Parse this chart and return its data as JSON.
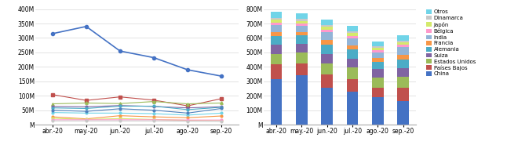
{
  "months": [
    "abr.-20",
    "may.-20",
    "jun.-20",
    "jul.-20",
    "ago.-20",
    "sep.-20"
  ],
  "line_china": [
    315000000.0,
    340000000.0,
    255000000.0,
    232000000.0,
    190000000.0,
    168000000.0
  ],
  "line_series_order": [
    "Países Bajos",
    "Estados Unidos",
    "Suiza",
    "Alemania",
    "Otros",
    "India",
    "Francia",
    "Japón",
    "Bélgica",
    "Dinamarca"
  ],
  "line_series": {
    "Países Bajos": {
      "color": "#c0504d",
      "values": [
        104000000.0,
        84000000.0,
        96000000.0,
        85000000.0,
        65000000.0,
        90000000.0
      ],
      "marker": "s",
      "ms": 3
    },
    "Estados Unidos": {
      "color": "#9bbb59",
      "values": [
        72000000.0,
        75000000.0,
        73000000.0,
        80000000.0,
        72000000.0,
        75000000.0
      ],
      "marker": "^",
      "ms": 2.5
    },
    "Suiza": {
      "color": "#8064a2",
      "values": [
        63000000.0,
        62000000.0,
        66000000.0,
        63000000.0,
        58000000.0,
        62000000.0
      ],
      "marker": "o",
      "ms": 2
    },
    "Alemania": {
      "color": "#4bacc6",
      "values": [
        58000000.0,
        56000000.0,
        64000000.0,
        64000000.0,
        52000000.0,
        60000000.0
      ],
      "marker": "o",
      "ms": 2
    },
    "Otros": {
      "color": "#70d4e8",
      "values": [
        42000000.0,
        40000000.0,
        40000000.0,
        38000000.0,
        33000000.0,
        40000000.0
      ],
      "marker": "o",
      "ms": 2
    },
    "India": {
      "color": "#4f81bd",
      "values": [
        50000000.0,
        46000000.0,
        55000000.0,
        50000000.0,
        40000000.0,
        56000000.0
      ],
      "marker": "o",
      "ms": 2
    },
    "Francia": {
      "color": "#f79646",
      "values": [
        27000000.0,
        20000000.0,
        31000000.0,
        27000000.0,
        24000000.0,
        30000000.0
      ],
      "marker": "o",
      "ms": 2
    },
    "Japón": {
      "color": "#d4ea6b",
      "values": [
        22000000.0,
        18000000.0,
        21000000.0,
        18000000.0,
        15000000.0,
        15000000.0
      ],
      "marker": "o",
      "ms": 2
    },
    "Bélgica": {
      "color": "#ff99cc",
      "values": [
        17000000.0,
        17000000.0,
        17000000.0,
        17000000.0,
        16000000.0,
        16000000.0
      ],
      "marker": "o",
      "ms": 2
    },
    "Dinamarca": {
      "color": "#c8c8c8",
      "values": [
        13000000.0,
        13000000.0,
        13000000.0,
        13000000.0,
        12000000.0,
        11000000.0
      ],
      "marker": "o",
      "ms": 2
    }
  },
  "bar_order": [
    "China",
    "Países Bajos",
    "Estados Unidos",
    "Suiza",
    "Alemania",
    "Francia",
    "India",
    "Bélgica",
    "Japón",
    "Dinamarca",
    "Otros"
  ],
  "bar_colors": {
    "China": "#4472c4",
    "Países Bajos": "#c0504d",
    "Estados Unidos": "#9bbb59",
    "Suiza": "#8064a2",
    "Alemania": "#4bacc6",
    "Francia": "#f79646",
    "India": "#92b4d7",
    "Bélgica": "#ff99cc",
    "Japón": "#d4ea6b",
    "Dinamarca": "#c8c8c8",
    "Otros": "#70d4e8"
  },
  "bar_values": {
    "China": [
      315000000.0,
      340000000.0,
      255000000.0,
      230000000.0,
      190000000.0,
      165000000.0
    ],
    "Países Bajos": [
      104000000.0,
      85000000.0,
      95000000.0,
      85000000.0,
      65000000.0,
      90000000.0
    ],
    "Estados Unidos": [
      72000000.0,
      75000000.0,
      73000000.0,
      80000000.0,
      72000000.0,
      75000000.0
    ],
    "Suiza": [
      63000000.0,
      62000000.0,
      66000000.0,
      63000000.0,
      58000000.0,
      62000000.0
    ],
    "Alemania": [
      58000000.0,
      56000000.0,
      64000000.0,
      64000000.0,
      52000000.0,
      60000000.0
    ],
    "Francia": [
      27000000.0,
      20000000.0,
      31000000.0,
      27000000.0,
      24000000.0,
      30000000.0
    ],
    "India": [
      50000000.0,
      46000000.0,
      55000000.0,
      50000000.0,
      40000000.0,
      56000000.0
    ],
    "Bélgica": [
      17000000.0,
      17000000.0,
      17000000.0,
      17000000.0,
      16000000.0,
      16000000.0
    ],
    "Japón": [
      22000000.0,
      18000000.0,
      21000000.0,
      18000000.0,
      15000000.0,
      15000000.0
    ],
    "Dinamarca": [
      13000000.0,
      13000000.0,
      13000000.0,
      13000000.0,
      12000000.0,
      11000000.0
    ],
    "Otros": [
      40000000.0,
      38000000.0,
      38000000.0,
      35000000.0,
      30000000.0,
      38000000.0
    ]
  },
  "legend_order": [
    "Otros",
    "Dinamarca",
    "Japón",
    "Bélgica",
    "India",
    "Francia",
    "Alemania",
    "Suiza",
    "Estados Unidos",
    "Países Bajos",
    "China"
  ],
  "line_ylim": [
    0,
    400000000.0
  ],
  "bar_ylim": [
    0,
    800000000.0
  ],
  "line_yticks": [
    0,
    50000000.0,
    100000000.0,
    150000000.0,
    200000000.0,
    250000000.0,
    300000000.0,
    350000000.0,
    400000000.0
  ],
  "bar_yticks": [
    0,
    100000000.0,
    200000000.0,
    300000000.0,
    400000000.0,
    500000000.0,
    600000000.0,
    700000000.0,
    800000000.0
  ],
  "china_color": "#4472c4",
  "grid_color": "#d8d8d8",
  "bg_color": "#ffffff"
}
